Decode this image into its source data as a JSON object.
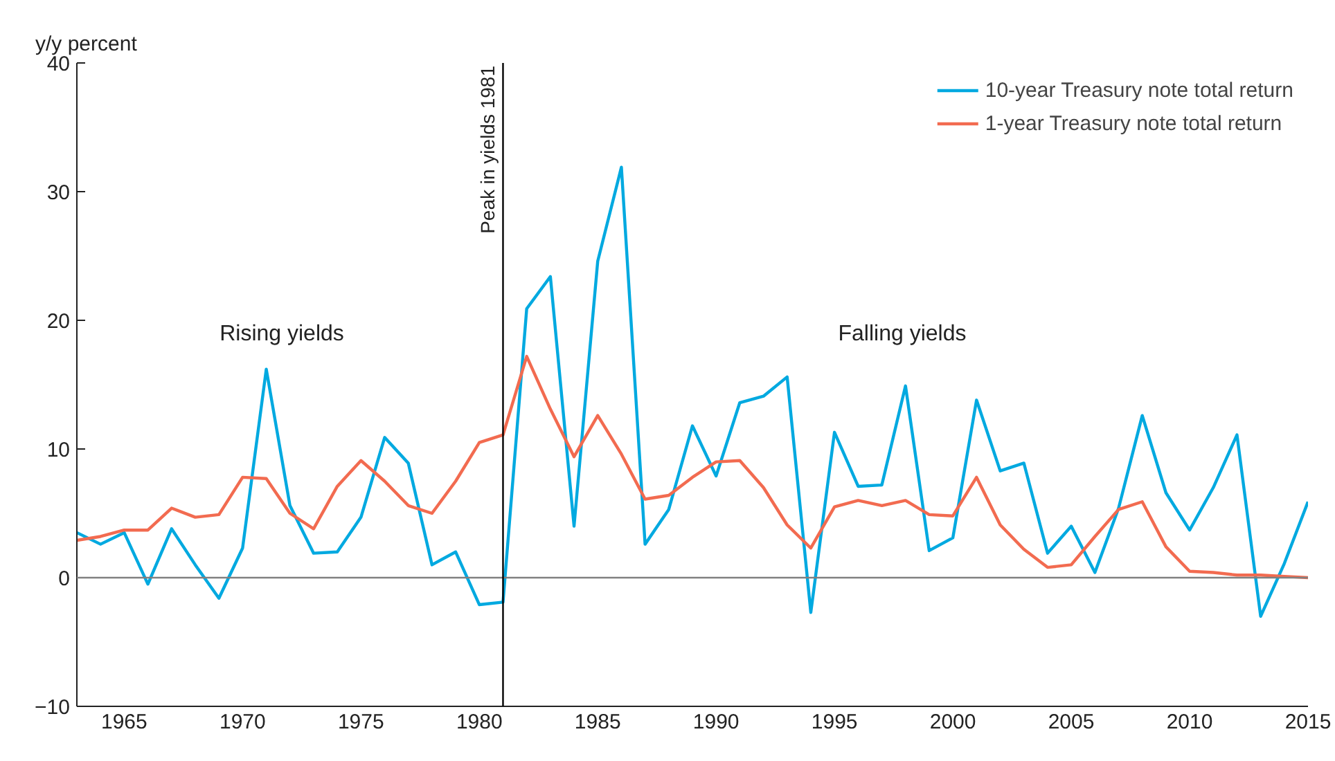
{
  "chart_data": {
    "type": "line",
    "ylabel": "y/y percent",
    "x": [
      1963,
      1964,
      1965,
      1966,
      1967,
      1968,
      1969,
      1970,
      1971,
      1972,
      1973,
      1974,
      1975,
      1976,
      1977,
      1978,
      1979,
      1980,
      1981,
      1982,
      1983,
      1984,
      1985,
      1986,
      1987,
      1988,
      1989,
      1990,
      1991,
      1992,
      1993,
      1994,
      1995,
      1996,
      1997,
      1998,
      1999,
      2000,
      2001,
      2002,
      2003,
      2004,
      2005,
      2006,
      2007,
      2008,
      2009,
      2010,
      2011,
      2012,
      2013,
      2014,
      2015
    ],
    "series": [
      {
        "name": "10-year Treasury note total return",
        "color": "#00a9e0",
        "values": [
          3.5,
          2.6,
          3.5,
          -0.5,
          3.8,
          1.0,
          -1.6,
          2.3,
          16.2,
          5.6,
          1.9,
          2.0,
          4.7,
          10.9,
          8.9,
          1.0,
          2.0,
          -2.1,
          -1.9,
          20.9,
          23.4,
          4.0,
          24.6,
          31.9,
          2.6,
          5.3,
          11.8,
          7.9,
          13.6,
          14.1,
          15.6,
          -2.7,
          11.3,
          7.1,
          7.2,
          14.9,
          2.1,
          3.1,
          13.8,
          8.3,
          8.9,
          1.9,
          4.0,
          0.4,
          5.4,
          12.6,
          6.6,
          3.7,
          7.0,
          11.1,
          -3.0,
          1.1,
          5.9
        ]
      },
      {
        "name": "1-year Treasury note total return",
        "color": "#f26b50",
        "values": [
          2.9,
          3.2,
          3.7,
          3.7,
          5.4,
          4.7,
          4.9,
          7.8,
          7.7,
          5.0,
          3.8,
          7.1,
          9.1,
          7.5,
          5.6,
          5.0,
          7.5,
          10.5,
          11.1,
          17.2,
          13.1,
          9.4,
          12.6,
          9.6,
          6.1,
          6.4,
          7.8,
          9.0,
          9.1,
          7.0,
          4.1,
          2.3,
          5.5,
          6.0,
          5.6,
          6.0,
          4.9,
          4.8,
          7.8,
          4.1,
          2.2,
          0.8,
          1.0,
          3.2,
          5.3,
          5.9,
          2.4,
          0.5,
          0.4,
          0.2,
          0.2,
          0.1,
          0.0
        ]
      }
    ],
    "xlim": [
      1963,
      2015
    ],
    "xticks": [
      1965,
      1970,
      1975,
      1980,
      1985,
      1990,
      1995,
      2000,
      2005,
      2010,
      2015
    ],
    "ylim": [
      -10,
      40
    ],
    "yticks": [
      -10,
      0,
      10,
      20,
      30,
      40
    ],
    "ref_lines": [
      {
        "axis": "y",
        "value": 0,
        "color": "#808080"
      },
      {
        "axis": "x",
        "value": 1981,
        "label": "Peak in yields 1981",
        "color": "#000000"
      }
    ],
    "annotations": [
      "Rising yields",
      "Falling yields"
    ],
    "grid": false,
    "legend": "top right",
    "marker": "none",
    "line_style": "solid"
  }
}
